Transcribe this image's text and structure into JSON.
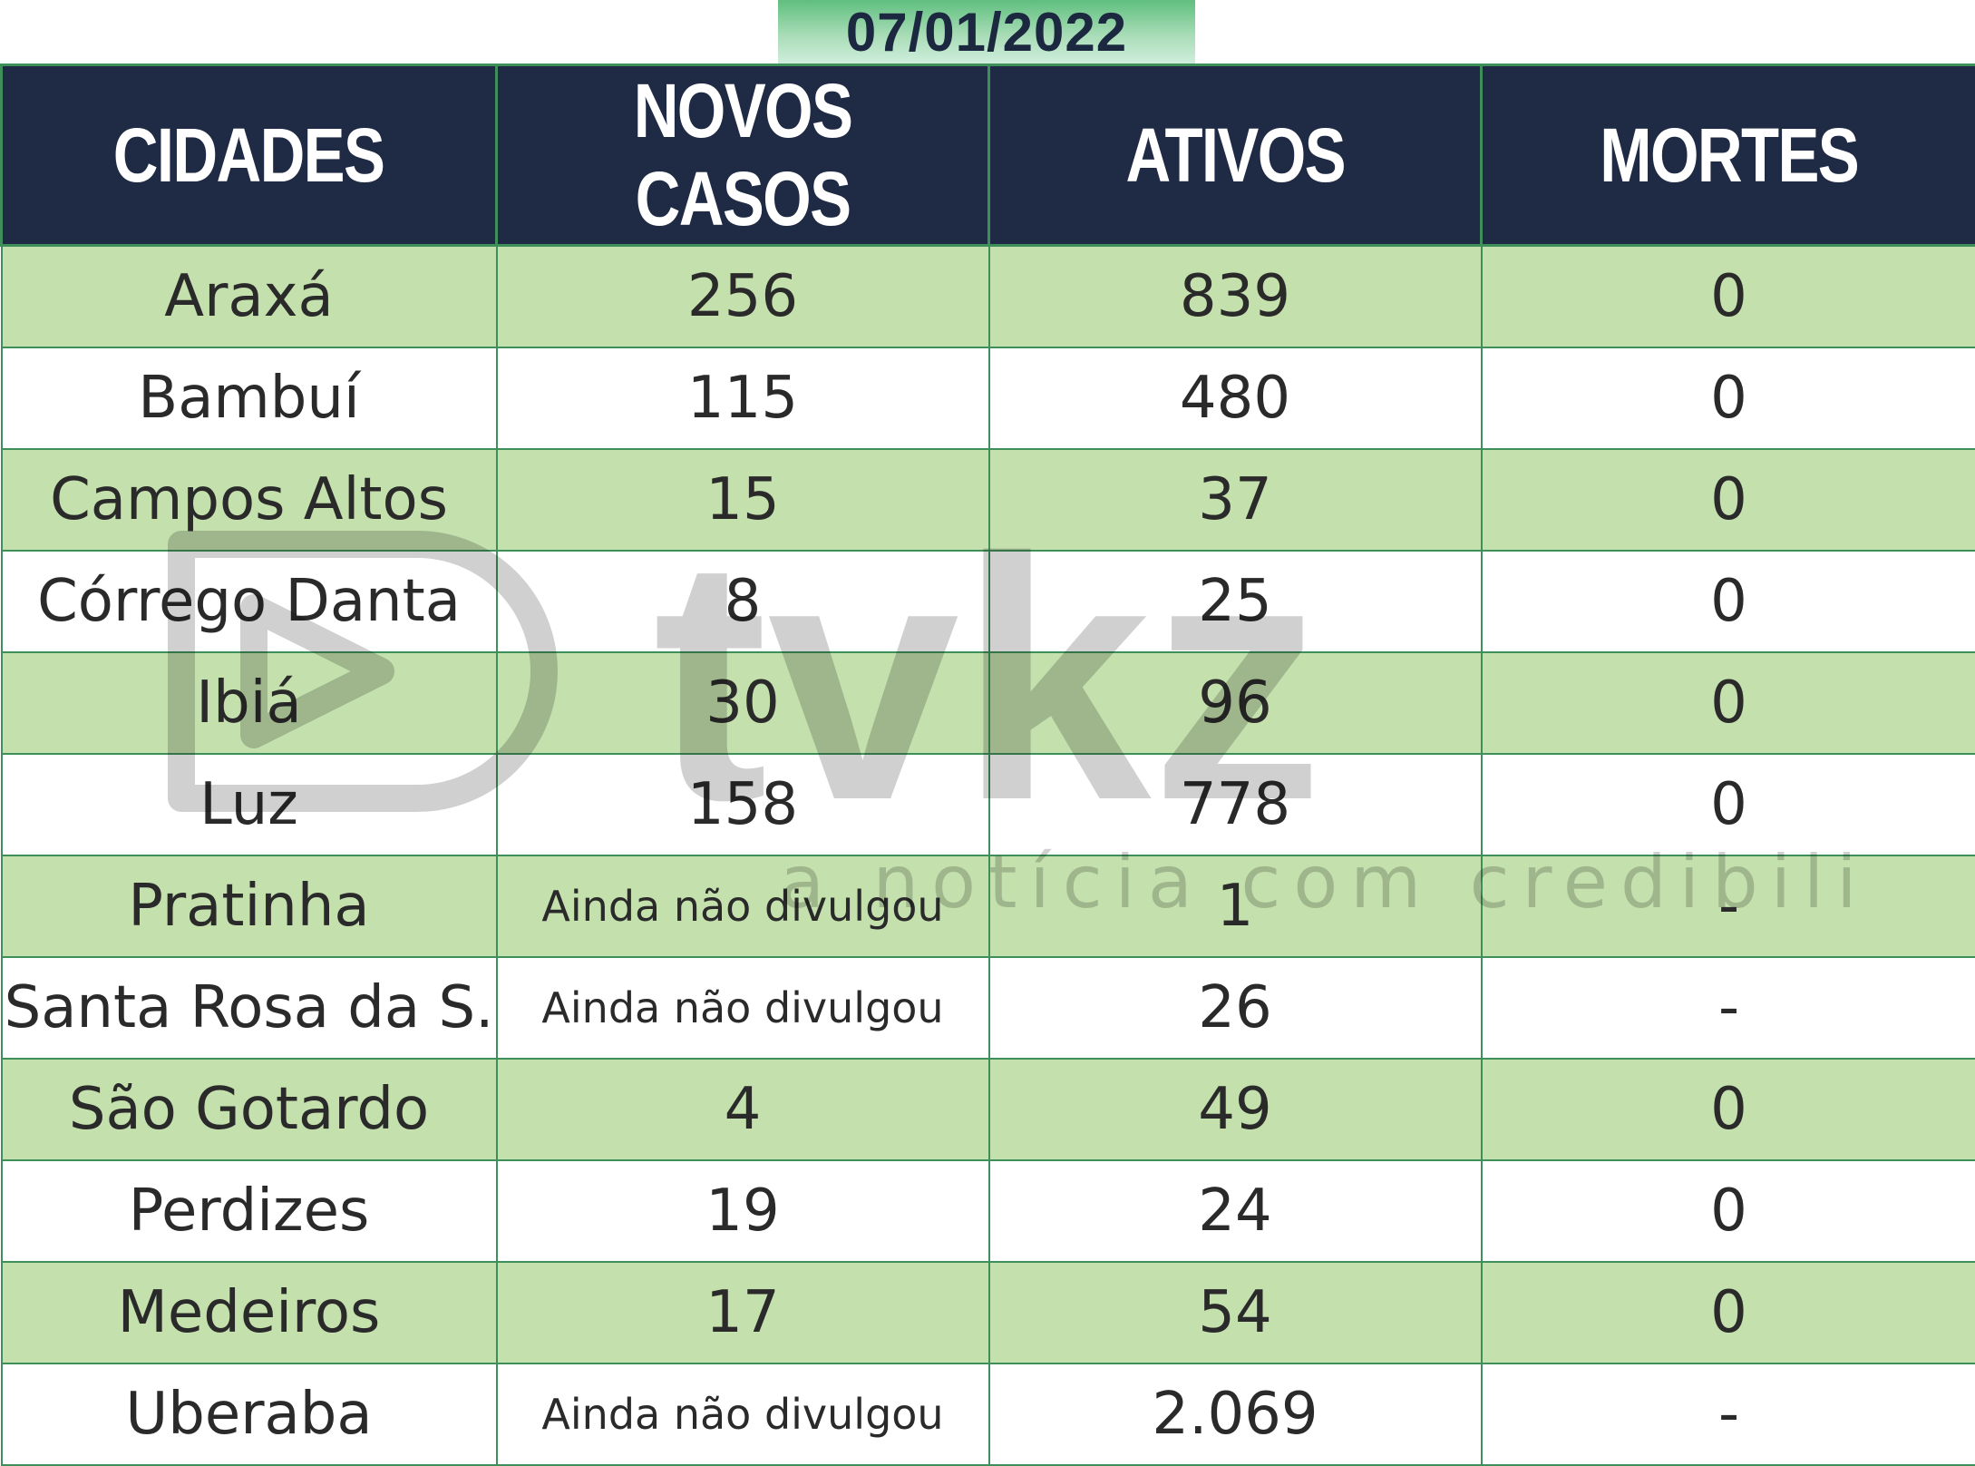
{
  "date": "07/01/2022",
  "headers": [
    "CIDADES",
    "NOVOS CASOS",
    "ATIVOS",
    "MORTES"
  ],
  "rows": [
    {
      "city": "Araxá",
      "new_cases": "256",
      "active": "839",
      "deaths": "0"
    },
    {
      "city": "Bambuí",
      "new_cases": "115",
      "active": "480",
      "deaths": "0"
    },
    {
      "city": "Campos Altos",
      "new_cases": "15",
      "active": "37",
      "deaths": "0"
    },
    {
      "city": "Córrego Danta",
      "new_cases": "8",
      "active": "25",
      "deaths": "0"
    },
    {
      "city": "Ibiá",
      "new_cases": "30",
      "active": "96",
      "deaths": "0"
    },
    {
      "city": "Luz",
      "new_cases": "158",
      "active": "778",
      "deaths": "0"
    },
    {
      "city": "Pratinha",
      "new_cases": "Ainda não divulgou",
      "active": "1",
      "deaths": "-"
    },
    {
      "city": "Santa Rosa da S.",
      "new_cases": "Ainda não divulgou",
      "active": "26",
      "deaths": "-"
    },
    {
      "city": "São Gotardo",
      "new_cases": "4",
      "active": "49",
      "deaths": "0"
    },
    {
      "city": "Perdizes",
      "new_cases": "19",
      "active": "24",
      "deaths": "0"
    },
    {
      "city": "Medeiros",
      "new_cases": "17",
      "active": "54",
      "deaths": "0"
    },
    {
      "city": "Uberaba",
      "new_cases": "Ainda não divulgou",
      "active": "2.069",
      "deaths": "-"
    }
  ],
  "watermark": {
    "logo_text": "tvkz",
    "tagline": "a notícia com credibilidade"
  },
  "colors": {
    "header_bg": "#1f2a44",
    "row_green": "#c3e0ad",
    "border": "#3f8f5a"
  }
}
